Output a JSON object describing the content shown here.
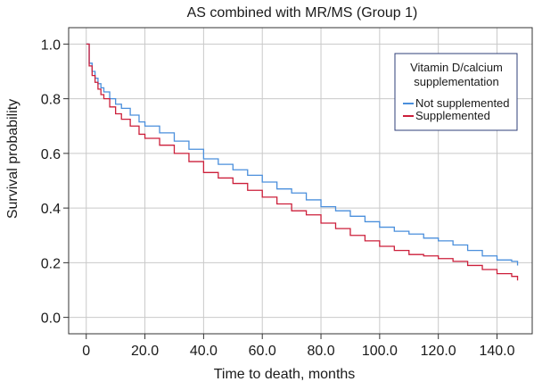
{
  "chart_data": {
    "type": "line",
    "title": "AS combined with MR/MS (Group 1)",
    "xlabel": "Time to death, months",
    "ylabel": "Survival probability",
    "xlim": [
      -6,
      152
    ],
    "ylim": [
      -0.06,
      1.06
    ],
    "x_ticks": [
      0,
      20,
      40,
      60,
      80,
      100,
      120,
      140
    ],
    "x_tick_labels": [
      "0",
      "20.0",
      "40.0",
      "60.0",
      "80.0",
      "100.0",
      "120.0",
      "140.0"
    ],
    "y_ticks": [
      0,
      0.2,
      0.4,
      0.6,
      0.8,
      1.0
    ],
    "y_tick_labels": [
      "0.0",
      "0.2",
      "0.4",
      "0.6",
      "0.8",
      "1.0"
    ],
    "grid": true,
    "step": true,
    "legend": {
      "title_line1": "Vitamin D/calcium",
      "title_line2": "supplementation",
      "placement": "top-right"
    },
    "series": [
      {
        "name": "Not supplemented",
        "color": "#4a8fdc",
        "x": [
          0,
          1,
          2,
          3,
          4,
          5,
          6,
          8,
          10,
          12,
          15,
          18,
          20,
          25,
          30,
          35,
          40,
          45,
          50,
          55,
          60,
          65,
          70,
          75,
          80,
          85,
          90,
          95,
          100,
          105,
          110,
          115,
          120,
          125,
          130,
          135,
          140,
          145,
          147
        ],
        "y": [
          1.0,
          0.93,
          0.9,
          0.875,
          0.855,
          0.84,
          0.825,
          0.8,
          0.78,
          0.765,
          0.74,
          0.715,
          0.7,
          0.675,
          0.645,
          0.615,
          0.58,
          0.56,
          0.54,
          0.52,
          0.495,
          0.47,
          0.455,
          0.43,
          0.405,
          0.39,
          0.37,
          0.35,
          0.33,
          0.315,
          0.305,
          0.29,
          0.28,
          0.265,
          0.245,
          0.225,
          0.21,
          0.205,
          0.19
        ]
      },
      {
        "name": "Supplemented",
        "color": "#cc1f3a",
        "x": [
          0,
          1,
          2,
          3,
          4,
          5,
          6,
          8,
          10,
          12,
          15,
          18,
          20,
          25,
          30,
          35,
          40,
          45,
          50,
          55,
          60,
          65,
          70,
          75,
          80,
          85,
          90,
          95,
          100,
          105,
          110,
          115,
          120,
          125,
          130,
          135,
          140,
          145,
          147
        ],
        "y": [
          1.0,
          0.92,
          0.885,
          0.86,
          0.835,
          0.815,
          0.8,
          0.77,
          0.745,
          0.725,
          0.7,
          0.67,
          0.655,
          0.63,
          0.6,
          0.57,
          0.53,
          0.51,
          0.49,
          0.465,
          0.44,
          0.415,
          0.39,
          0.375,
          0.345,
          0.325,
          0.3,
          0.28,
          0.26,
          0.245,
          0.23,
          0.225,
          0.215,
          0.205,
          0.19,
          0.175,
          0.16,
          0.15,
          0.135
        ]
      }
    ]
  }
}
